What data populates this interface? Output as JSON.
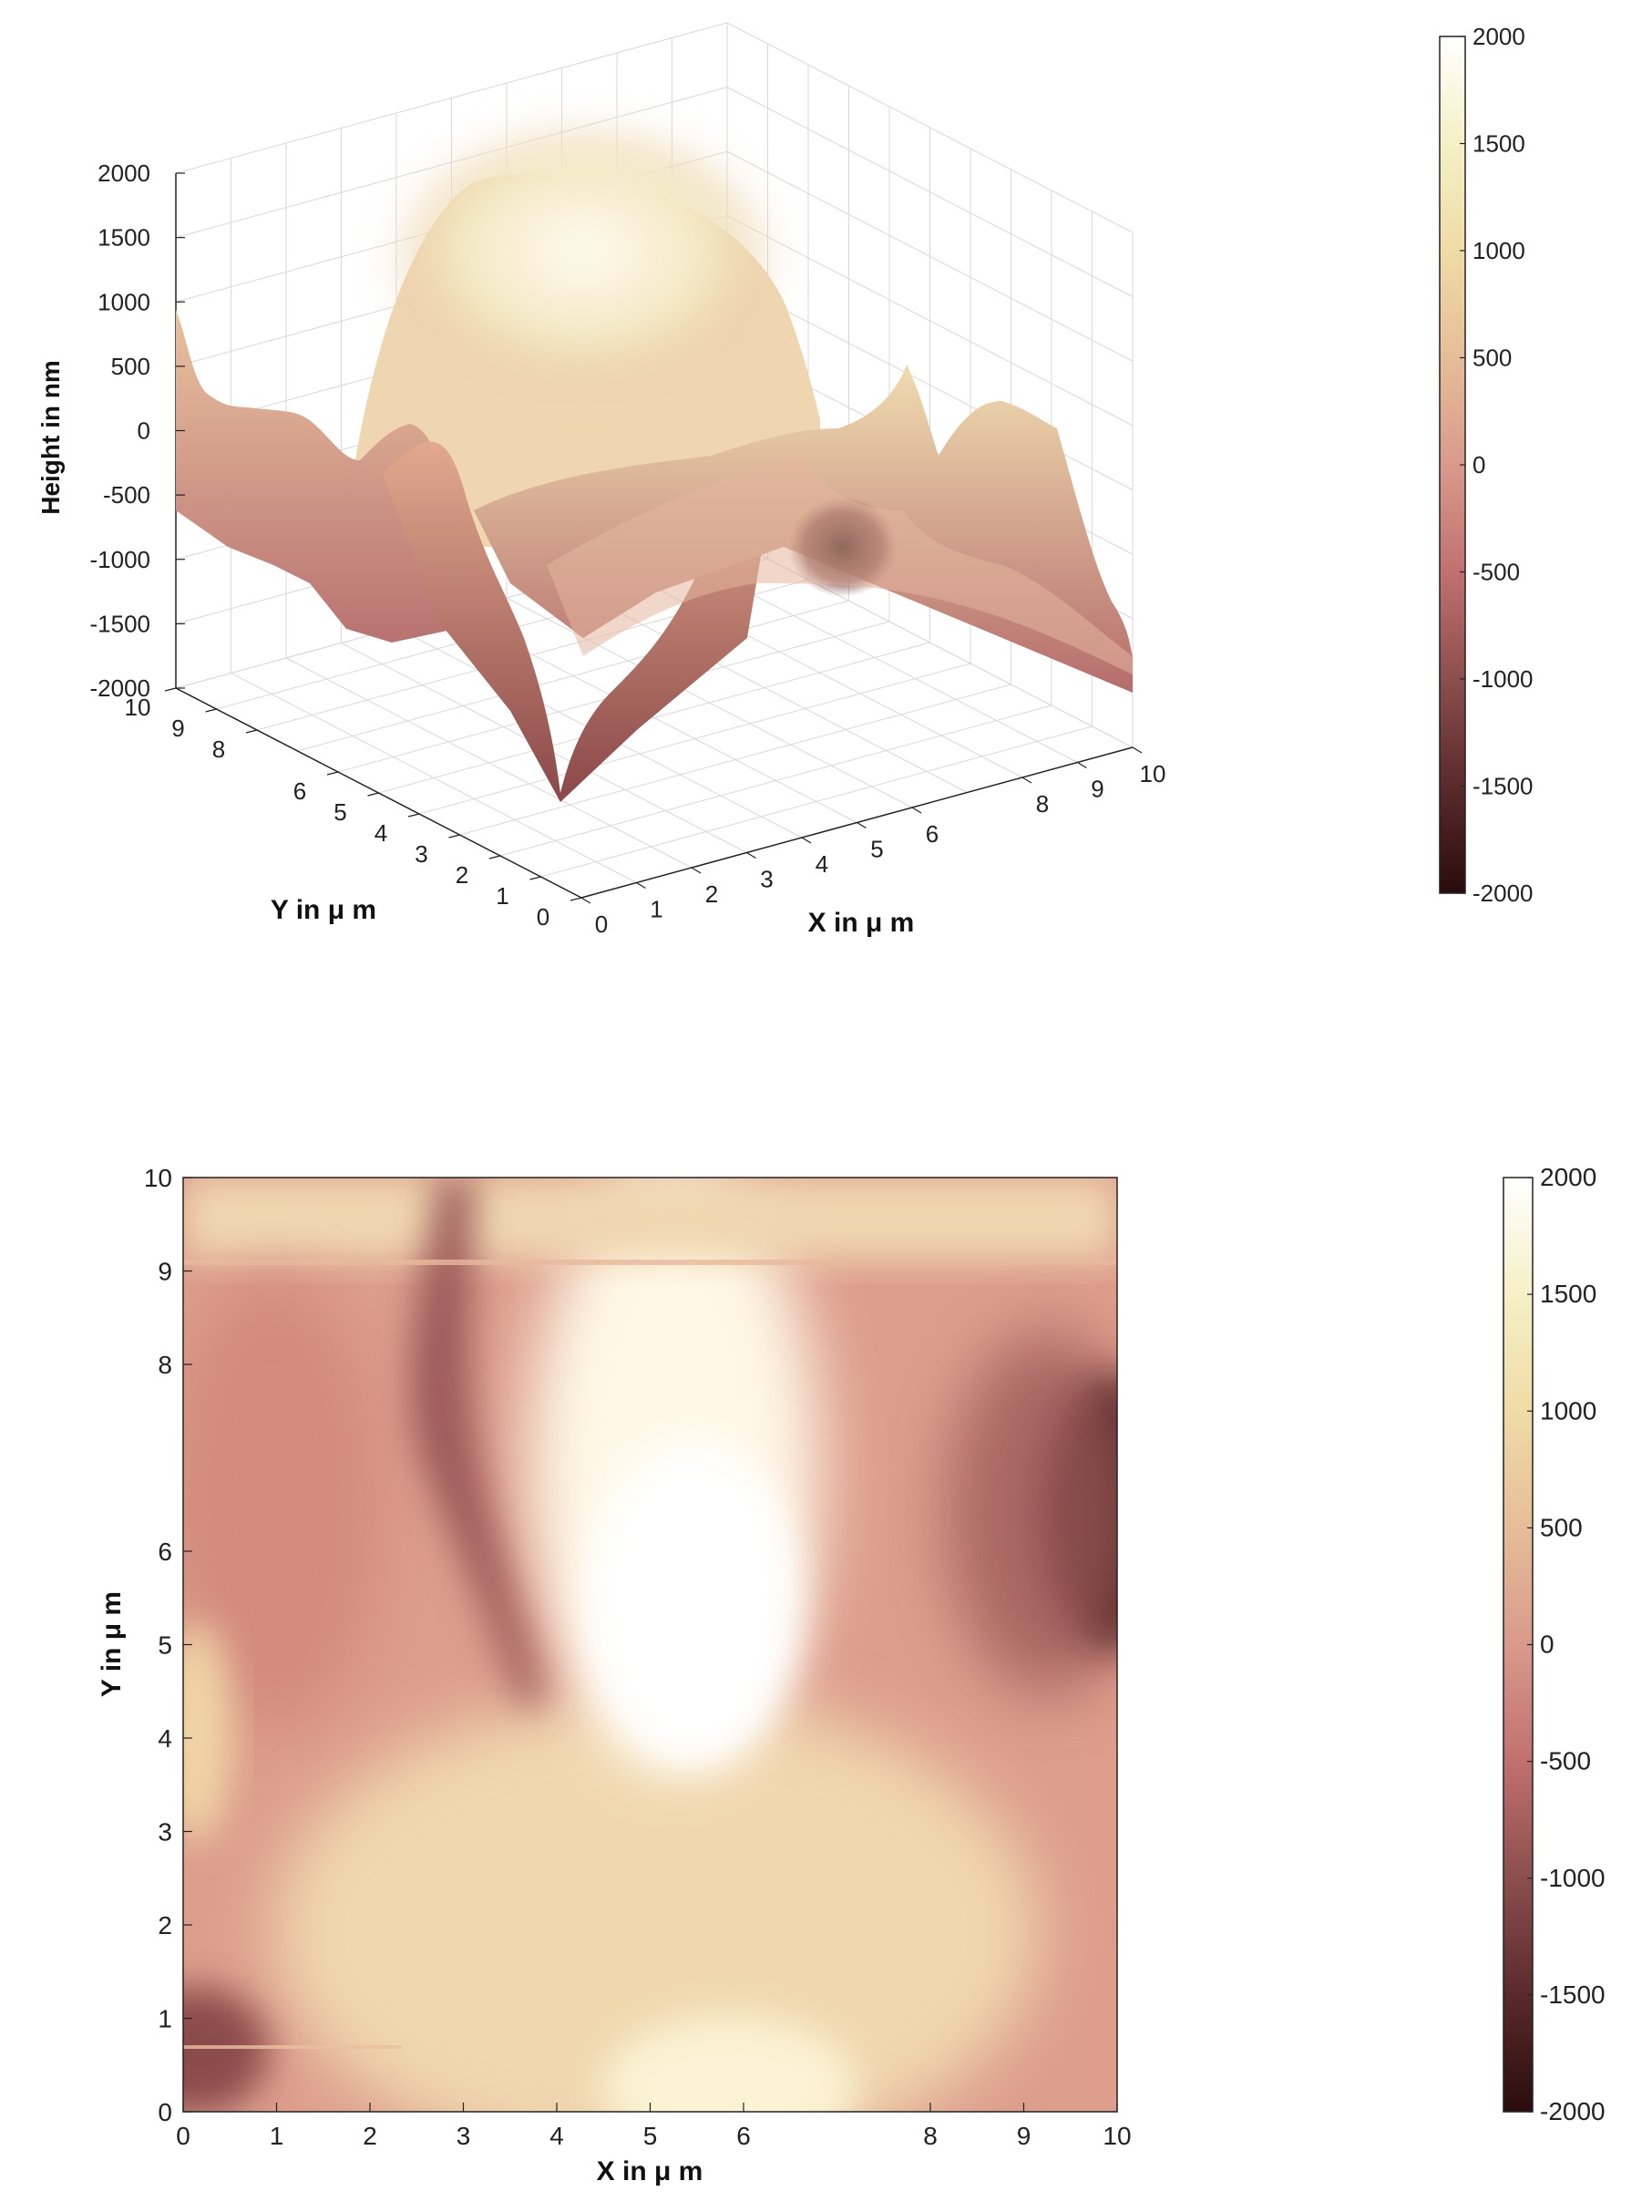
{
  "chart_data": [
    {
      "type": "surface3d",
      "title": "",
      "xlabel": "X in μ m",
      "ylabel": "Y in μ m",
      "zlabel": "Height in nm",
      "xlim": [
        0,
        10
      ],
      "ylim": [
        0,
        10
      ],
      "zlim": [
        -2000,
        2000
      ],
      "x_ticks": [
        "0",
        "1",
        "2",
        "3",
        "4",
        "5",
        "6",
        "8",
        "9",
        "10"
      ],
      "y_ticks": [
        "0",
        "1",
        "2",
        "3",
        "4",
        "5",
        "6",
        "8",
        "9",
        "10"
      ],
      "z_ticks": [
        "-2000",
        "-1500",
        "-1000",
        "-500",
        "0",
        "500",
        "1000",
        "1500",
        "2000"
      ],
      "grid": true,
      "colorbar": {
        "ticks": [
          "-2000",
          "-1500",
          "-1000",
          "-500",
          "0",
          "500",
          "1000",
          "1500",
          "2000"
        ],
        "range": [
          -2000,
          2000
        ],
        "colors": [
          "#2a0c0e",
          "#5a2a2c",
          "#8c4e4e",
          "#c0716f",
          "#d99a8c",
          "#e6bd98",
          "#efdca6",
          "#f5f0c6",
          "#ffffff"
        ]
      },
      "surface_points_nm": [
        {
          "x": 0,
          "y": 0,
          "z": -900
        },
        {
          "x": 0,
          "y": 10,
          "z": 400
        },
        {
          "x": 10,
          "y": 0,
          "z": -100
        },
        {
          "x": 10,
          "y": 10,
          "z": -1500
        },
        {
          "x": 5,
          "y": 5,
          "z": 1800
        },
        {
          "x": 9.5,
          "y": 7,
          "z": -1900
        }
      ]
    },
    {
      "type": "heatmap",
      "title": "",
      "xlabel": "X in μ m",
      "ylabel": "Y in μ m",
      "xlim": [
        0,
        10
      ],
      "ylim": [
        0,
        10
      ],
      "x_ticks": [
        "0",
        "1",
        "2",
        "3",
        "4",
        "5",
        "6",
        "8",
        "9",
        "10"
      ],
      "y_ticks": [
        "0",
        "1",
        "2",
        "3",
        "4",
        "5",
        "6",
        "8",
        "9",
        "10"
      ],
      "colorbar": {
        "ticks": [
          "-2000",
          "-1500",
          "-1000",
          "-500",
          "0",
          "500",
          "1000",
          "1500",
          "2000"
        ],
        "range": [
          -2000,
          2000
        ],
        "colors": [
          "#2a0c0e",
          "#5a2a2c",
          "#8c4e4e",
          "#c0716f",
          "#d99a8c",
          "#e6bd98",
          "#efdca6",
          "#f5f0c6",
          "#ffffff"
        ]
      },
      "features": [
        {
          "kind": "bright-ridge",
          "x_range": [
            4,
            6
          ],
          "y_range": [
            4,
            10
          ],
          "z": 1800
        },
        {
          "kind": "dark-valley",
          "x_range": [
            2,
            3
          ],
          "y_range": [
            4,
            10
          ],
          "z": -800
        },
        {
          "kind": "dark-pit",
          "x": 9.8,
          "y": 7,
          "z": -1900
        },
        {
          "kind": "dark-corner",
          "x": 0,
          "y": 0.3,
          "z": -1300
        }
      ]
    }
  ]
}
